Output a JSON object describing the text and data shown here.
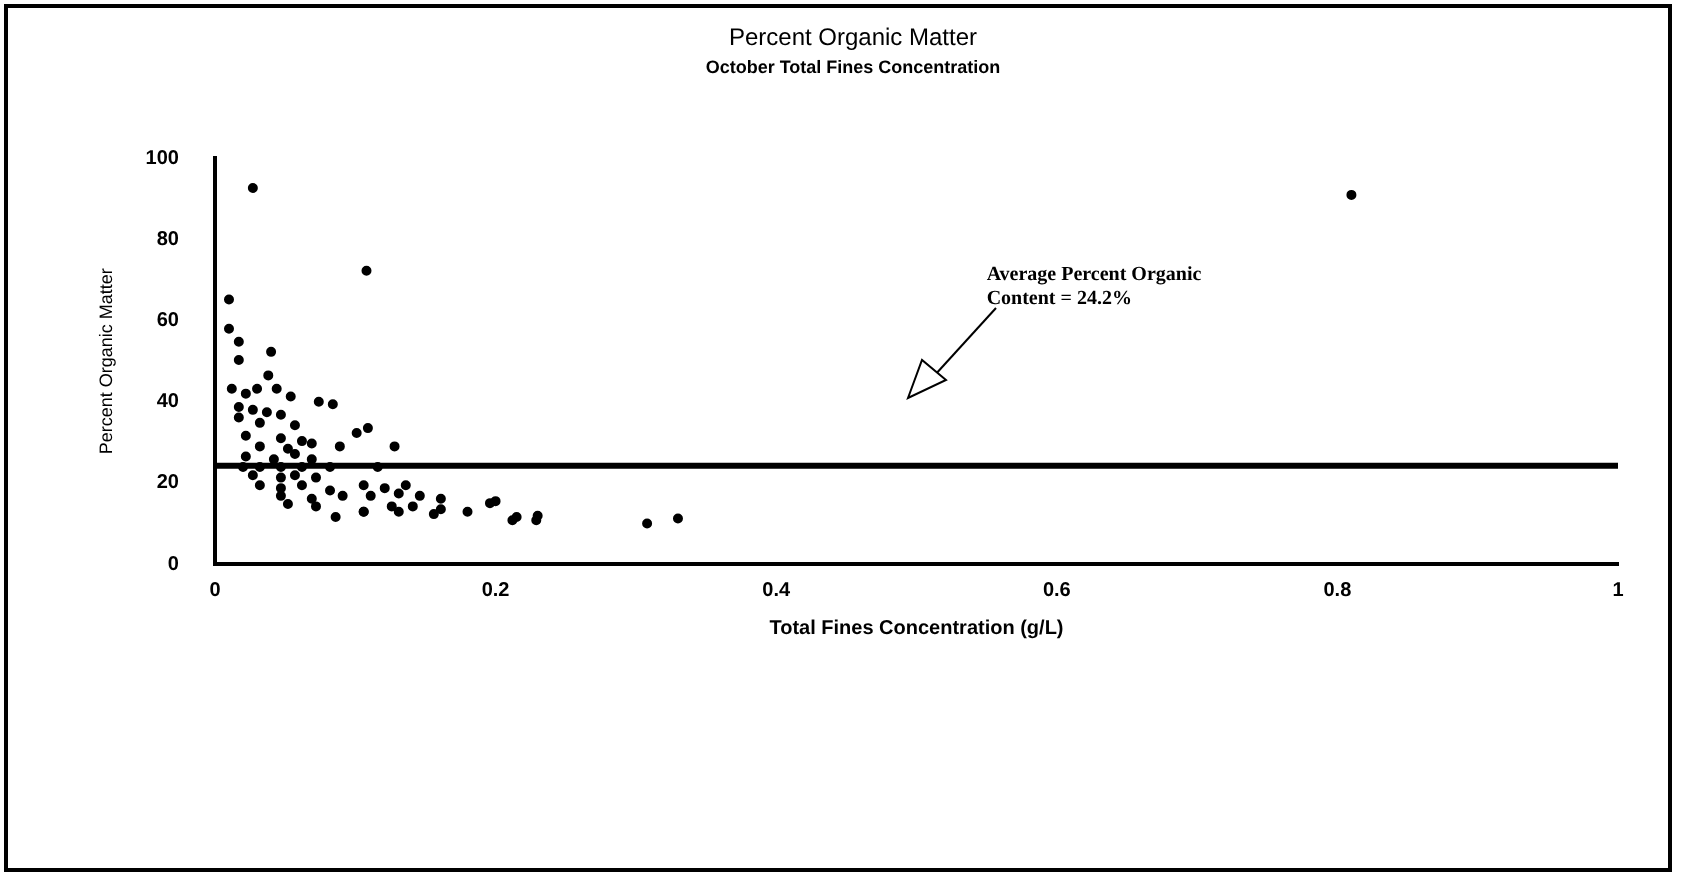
{
  "chart_data": {
    "type": "scatter",
    "title": "Percent Organic Matter",
    "subtitle": "October Total Fines Concentration",
    "xlabel": "Total Fines Concentration (g/L)",
    "ylabel": "Percent Organic Matter",
    "x": [
      0.027,
      0.81,
      0.108,
      0.01,
      0.01,
      0.017,
      0.04,
      0.017,
      0.038,
      0.012,
      0.03,
      0.044,
      0.022,
      0.054,
      0.074,
      0.084,
      0.017,
      0.027,
      0.037,
      0.047,
      0.017,
      0.032,
      0.057,
      0.109,
      0.101,
      0.022,
      0.047,
      0.062,
      0.032,
      0.052,
      0.069,
      0.089,
      0.128,
      0.022,
      0.042,
      0.057,
      0.069,
      0.02,
      0.032,
      0.047,
      0.062,
      0.082,
      0.116,
      0.027,
      0.047,
      0.057,
      0.072,
      0.032,
      0.047,
      0.062,
      0.082,
      0.106,
      0.121,
      0.136,
      0.047,
      0.069,
      0.091,
      0.111,
      0.131,
      0.146,
      0.161,
      0.052,
      0.072,
      0.106,
      0.126,
      0.141,
      0.161,
      0.18,
      0.2,
      0.086,
      0.106,
      0.131,
      0.156,
      0.215,
      0.23,
      0.196,
      0.212,
      0.229,
      0.308,
      0.33
    ],
    "values": [
      92.7,
      91,
      72.3,
      65.2,
      58,
      54.8,
      52.3,
      50.3,
      46.5,
      43.2,
      43.2,
      43.2,
      42,
      41.3,
      40,
      39.4,
      38.7,
      38,
      37.4,
      36.8,
      36.1,
      34.8,
      34.2,
      33.5,
      32.3,
      31.6,
      31,
      30.3,
      29,
      28.4,
      29.7,
      29,
      29,
      26.5,
      25.8,
      27.1,
      25.8,
      23.9,
      23.9,
      23.9,
      23.9,
      23.9,
      23.9,
      21.9,
      21.3,
      21.9,
      21.3,
      19.4,
      18.7,
      19.4,
      18.1,
      19.4,
      18.7,
      19.4,
      16.8,
      16.1,
      16.8,
      16.8,
      17.4,
      16.8,
      16.1,
      14.8,
      14.2,
      12.9,
      14.2,
      14.2,
      13.5,
      12.9,
      15.5,
      11.6,
      12.9,
      12.9,
      12.3,
      11.6,
      11.9,
      15,
      10.8,
      10.8,
      10,
      11.2
    ],
    "color": "#000000",
    "marker": "circle",
    "xlim": [
      0,
      1
    ],
    "xticks": [
      0,
      0.2,
      0.4,
      0.6,
      0.8,
      1
    ],
    "ylim": [
      0,
      100
    ],
    "yticks": [
      0,
      20,
      40,
      60,
      80,
      100
    ],
    "ref_lines": [
      {
        "axis": "y",
        "value": 24.2,
        "color": "#000000"
      }
    ],
    "annotations": [
      "Average Percent Organic Content = 24.2%"
    ],
    "grid": false,
    "legend": false
  }
}
